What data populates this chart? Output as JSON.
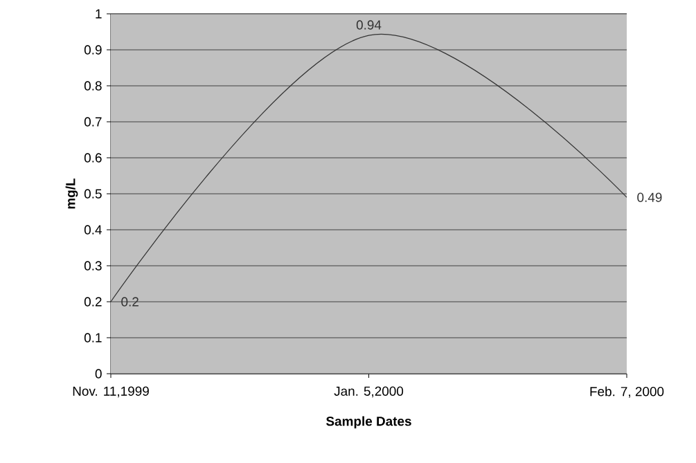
{
  "chart_data": {
    "type": "line",
    "xlabel": "Sample Dates",
    "ylabel": "mg/L",
    "categories": [
      "Nov. 11,1999",
      "Jan. 5,2000",
      "Feb. 7, 2000"
    ],
    "values": [
      0.2,
      0.94,
      0.49
    ],
    "color": "#333333",
    "ylim": [
      0,
      1
    ],
    "yticks": [
      0,
      0.1,
      0.2,
      0.3,
      0.4,
      0.5,
      0.6,
      0.7,
      0.8,
      0.9,
      1
    ],
    "grid": "y",
    "data_labels": true,
    "marker": "none",
    "line_style": "solid"
  }
}
